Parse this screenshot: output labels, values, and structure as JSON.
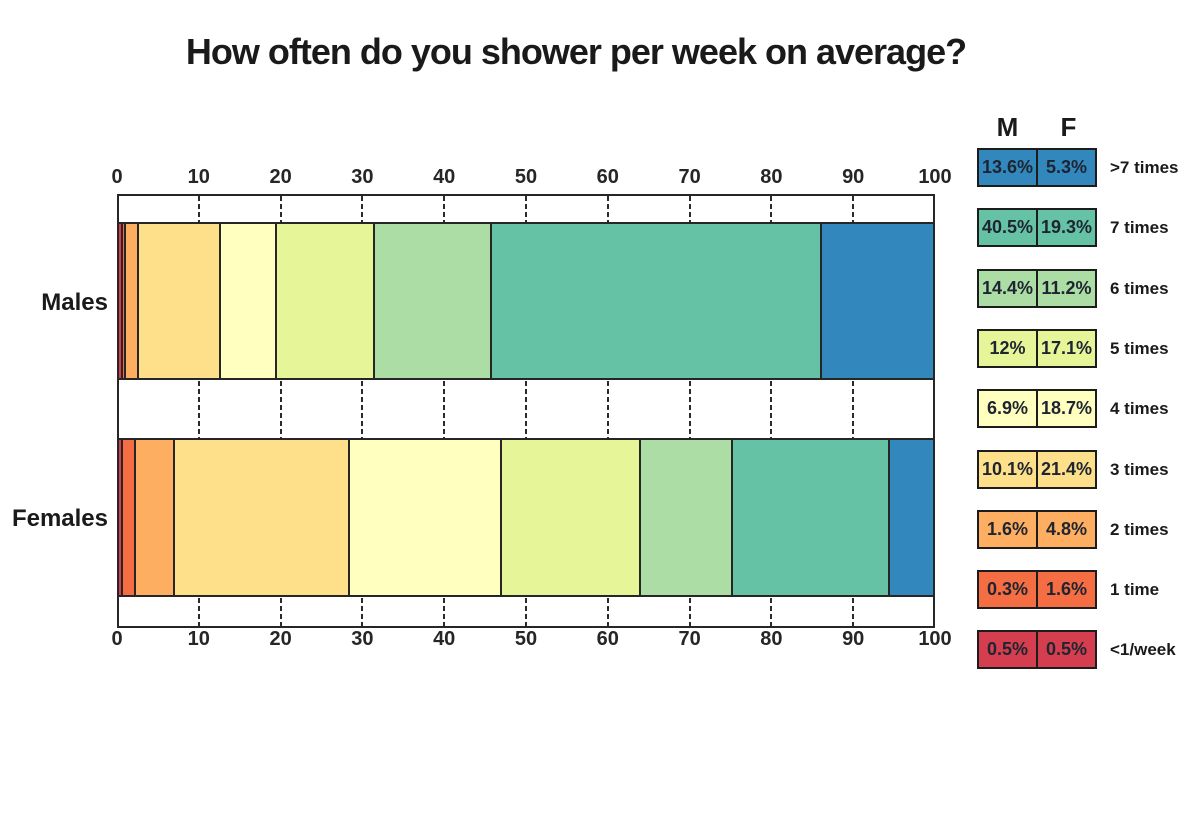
{
  "title": "How often do you shower per week on average?",
  "chart_data": {
    "type": "bar",
    "variant": "horizontal_stacked_percentage",
    "title": "How often do you shower per week on average?",
    "categories": [
      "Males",
      "Females"
    ],
    "axis": {
      "min": 0,
      "max": 100,
      "tick_step": 10,
      "ticks": [
        0,
        10,
        20,
        30,
        40,
        50,
        60,
        70,
        80,
        90,
        100
      ],
      "tick_labels": [
        "0",
        "10",
        "20",
        "30",
        "40",
        "50",
        "60",
        "70",
        "80",
        "90",
        "100"
      ],
      "gridlines": "dashed-vertical-in-white-gaps-only",
      "tick_label_positions": [
        "top",
        "bottom"
      ]
    },
    "stack_order_left_to_right": [
      "<1/week",
      "1 time",
      "2 times",
      "3 times",
      "4 times",
      "5 times",
      "6 times",
      "7 times",
      ">7 times"
    ],
    "series": [
      {
        "name": ">7 times",
        "color": "#3288bd",
        "values": {
          "Males": 13.6,
          "Females": 5.3
        },
        "labels": {
          "Males": "13.6%",
          "Females": "5.3%"
        }
      },
      {
        "name": "7 times",
        "color": "#66c2a5",
        "values": {
          "Males": 40.5,
          "Females": 19.3
        },
        "labels": {
          "Males": "40.5%",
          "Females": "19.3%"
        }
      },
      {
        "name": "6 times",
        "color": "#abdda4",
        "values": {
          "Males": 14.4,
          "Females": 11.2
        },
        "labels": {
          "Males": "14.4%",
          "Females": "11.2%"
        }
      },
      {
        "name": "5 times",
        "color": "#e6f598",
        "values": {
          "Males": 12,
          "Females": 17.1
        },
        "labels": {
          "Males": "12%",
          "Females": "17.1%"
        }
      },
      {
        "name": "4 times",
        "color": "#ffffbf",
        "values": {
          "Males": 6.9,
          "Females": 18.7
        },
        "labels": {
          "Males": "6.9%",
          "Females": "18.7%"
        }
      },
      {
        "name": "3 times",
        "color": "#fee08b",
        "values": {
          "Males": 10.1,
          "Females": 21.4
        },
        "labels": {
          "Males": "10.1%",
          "Females": "21.4%"
        }
      },
      {
        "name": "2 times",
        "color": "#fdae61",
        "values": {
          "Males": 1.6,
          "Females": 4.8
        },
        "labels": {
          "Males": "1.6%",
          "Females": "4.8%"
        }
      },
      {
        "name": "1 time",
        "color": "#f46d43",
        "values": {
          "Males": 0.3,
          "Females": 1.6
        },
        "labels": {
          "Males": "0.3%",
          "Females": "1.6%"
        }
      },
      {
        "name": "<1/week",
        "color": "#d53e4f",
        "values": {
          "Males": 0.5,
          "Females": 0.5
        },
        "labels": {
          "Males": "0.5%",
          "Females": "0.5%"
        }
      }
    ],
    "legend": {
      "position": "right",
      "column_headers": [
        "M",
        "F"
      ],
      "row_labels": [
        ">7 times",
        "7 times",
        "6 times",
        "5 times",
        "4 times",
        "3 times",
        "2 times",
        "1 time",
        "<1/week"
      ]
    }
  },
  "colors": {
    "background": "#ffffff",
    "plot_border": "#262626",
    "gridline": "#2b2b2b",
    "legend_border": "#1c1c1c",
    "text": "#1a1a1a"
  }
}
